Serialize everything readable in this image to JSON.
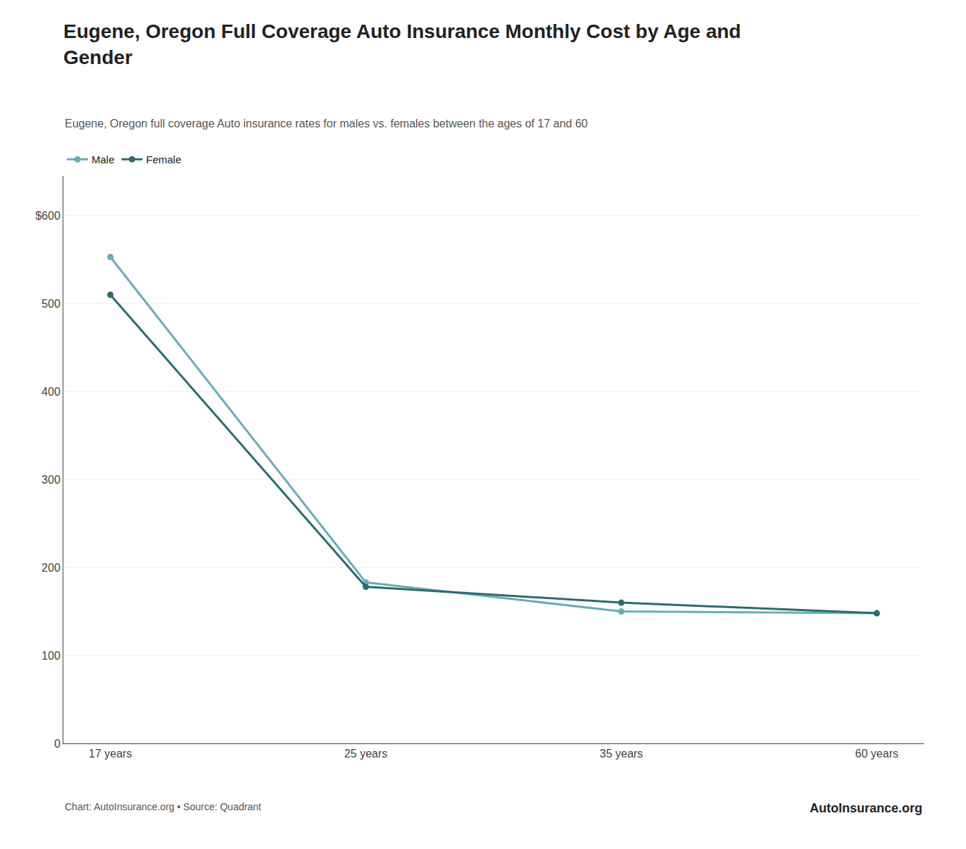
{
  "chart_data": {
    "type": "line",
    "title": "Eugene, Oregon Full Coverage Auto Insurance Monthly Cost by Age and\nGender",
    "subtitle": "Eugene, Oregon full coverage Auto insurance rates for males vs. females between the ages of 17 and 60",
    "annotations": [
      "Chart: AutoInsurance.org • Source: Quadrant",
      "AutoInsurance.org"
    ],
    "categories": [
      "17 years",
      "25 years",
      "35 years",
      "60 years"
    ],
    "series": [
      {
        "name": "Male",
        "color": "#6aacb8",
        "values": [
          553,
          183,
          150,
          148
        ]
      },
      {
        "name": "Female",
        "color": "#2b6b6e",
        "values": [
          510,
          178,
          160,
          148
        ]
      }
    ],
    "ylim": [
      0,
      645
    ],
    "yticks": [
      0,
      100,
      200,
      300,
      400,
      500,
      {
        "value": 600,
        "label": "$600"
      }
    ],
    "grid": true,
    "legend": "upper left",
    "marker": "circle"
  }
}
